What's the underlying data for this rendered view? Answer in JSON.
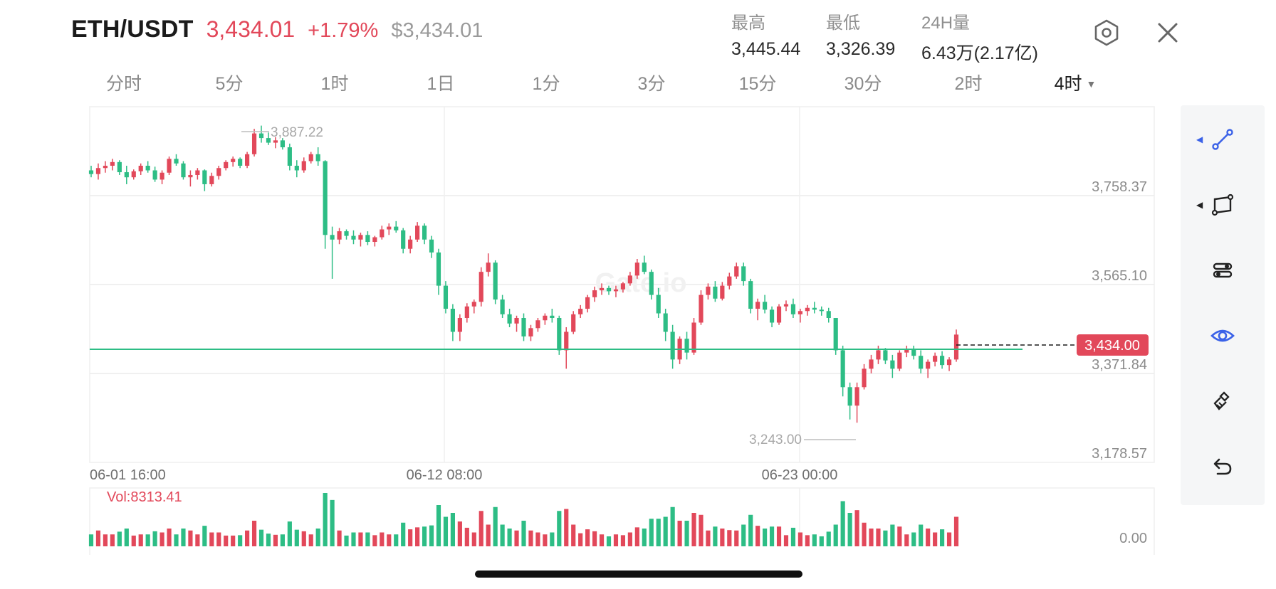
{
  "header": {
    "pair": "ETH/USDT",
    "price": "3,434.01",
    "change": "+1.79%",
    "usd_price": "$3,434.01",
    "colors": {
      "up": "#e2485a",
      "down": "#2dbd85",
      "muted": "#9a9a9a"
    }
  },
  "stats": {
    "high_label": "最高",
    "high_value": "3,445.44",
    "low_label": "最低",
    "low_value": "3,326.39",
    "volume_label": "24H量",
    "volume_value": "6.43万(2.17亿)"
  },
  "icons": {
    "settings": "hexagon-settings-icon",
    "close": "close-icon"
  },
  "tabs": [
    {
      "label": "分时",
      "active": false
    },
    {
      "label": "5分",
      "active": false
    },
    {
      "label": "1时",
      "active": false
    },
    {
      "label": "1日",
      "active": false
    },
    {
      "label": "1分",
      "active": false
    },
    {
      "label": "3分",
      "active": false
    },
    {
      "label": "15分",
      "active": false
    },
    {
      "label": "30分",
      "active": false
    },
    {
      "label": "2时",
      "active": false
    },
    {
      "label": "4时",
      "active": true
    }
  ],
  "chart": {
    "watermark": "Gate.io",
    "price_levels": [
      "3,758.37",
      "3,565.10",
      "3,371.84",
      "3,178.57"
    ],
    "date_labels": [
      "06-01 16:00",
      "06-12 08:00",
      "06-23 00:00"
    ],
    "high_marker": "3,887.22",
    "low_marker": "3,243.00",
    "current_price_tag": "3,434.00",
    "horizontal_line_color": "#2dbd85",
    "volume_label": "Vol:8313.41",
    "volume_axis_label": "0.00"
  },
  "chart_data": {
    "type": "candlestick",
    "timeframe": "4时",
    "y_ticks": [
      3758.37,
      3565.1,
      3371.84,
      3178.57
    ],
    "x_ticks": [
      "06-01 16:00",
      "06-12 08:00",
      "06-23 00:00"
    ],
    "max_marker": 3887.22,
    "min_marker": 3243.0,
    "last_price": 3434.0,
    "volume_last": 8313.41,
    "ohlc_approx": [
      [
        3790,
        3800,
        3775,
        3782
      ],
      [
        3782,
        3805,
        3770,
        3795
      ],
      [
        3795,
        3810,
        3785,
        3800
      ],
      [
        3800,
        3815,
        3790,
        3808
      ],
      [
        3808,
        3812,
        3780,
        3786
      ],
      [
        3786,
        3800,
        3760,
        3775
      ],
      [
        3775,
        3792,
        3770,
        3788
      ],
      [
        3788,
        3805,
        3780,
        3800
      ],
      [
        3800,
        3810,
        3785,
        3790
      ],
      [
        3790,
        3798,
        3765,
        3770
      ],
      [
        3770,
        3790,
        3760,
        3785
      ],
      [
        3785,
        3820,
        3780,
        3815
      ],
      [
        3815,
        3825,
        3800,
        3805
      ],
      [
        3805,
        3810,
        3770,
        3775
      ],
      [
        3775,
        3790,
        3755,
        3780
      ],
      [
        3780,
        3795,
        3770,
        3790
      ],
      [
        3790,
        3792,
        3745,
        3760
      ],
      [
        3760,
        3785,
        3755,
        3778
      ],
      [
        3778,
        3800,
        3770,
        3795
      ],
      [
        3795,
        3812,
        3790,
        3808
      ],
      [
        3808,
        3820,
        3798,
        3815
      ],
      [
        3815,
        3818,
        3795,
        3800
      ],
      [
        3800,
        3830,
        3795,
        3825
      ],
      [
        3825,
        3880,
        3820,
        3870
      ],
      [
        3870,
        3887,
        3850,
        3860
      ],
      [
        3860,
        3872,
        3845,
        3850
      ],
      [
        3850,
        3862,
        3838,
        3855
      ],
      [
        3855,
        3860,
        3835,
        3840
      ],
      [
        3840,
        3848,
        3790,
        3800
      ],
      [
        3800,
        3812,
        3775,
        3790
      ],
      [
        3790,
        3818,
        3785,
        3810
      ],
      [
        3810,
        3830,
        3805,
        3825
      ],
      [
        3825,
        3840,
        3800,
        3810
      ],
      [
        3810,
        3812,
        3620,
        3650
      ],
      [
        3650,
        3668,
        3555,
        3640
      ],
      [
        3640,
        3665,
        3630,
        3658
      ],
      [
        3658,
        3662,
        3640,
        3648
      ],
      [
        3648,
        3660,
        3630,
        3640
      ],
      [
        3640,
        3655,
        3625,
        3650
      ],
      [
        3650,
        3658,
        3628,
        3635
      ],
      [
        3635,
        3648,
        3625,
        3645
      ],
      [
        3645,
        3670,
        3640,
        3662
      ],
      [
        3662,
        3675,
        3650,
        3668
      ],
      [
        3668,
        3680,
        3655,
        3660
      ],
      [
        3660,
        3665,
        3610,
        3620
      ],
      [
        3620,
        3648,
        3610,
        3640
      ],
      [
        3640,
        3678,
        3635,
        3670
      ],
      [
        3670,
        3675,
        3630,
        3640
      ],
      [
        3640,
        3648,
        3600,
        3612
      ],
      [
        3612,
        3620,
        3520,
        3540
      ],
      [
        3540,
        3550,
        3480,
        3490
      ],
      [
        3490,
        3500,
        3420,
        3440
      ],
      [
        3440,
        3478,
        3420,
        3470
      ],
      [
        3470,
        3502,
        3460,
        3495
      ],
      [
        3495,
        3510,
        3480,
        3505
      ],
      [
        3505,
        3580,
        3495,
        3570
      ],
      [
        3570,
        3610,
        3560,
        3590
      ],
      [
        3590,
        3595,
        3500,
        3510
      ],
      [
        3510,
        3520,
        3470,
        3478
      ],
      [
        3478,
        3490,
        3450,
        3458
      ],
      [
        3458,
        3475,
        3440,
        3470
      ],
      [
        3470,
        3480,
        3420,
        3430
      ],
      [
        3430,
        3455,
        3420,
        3448
      ],
      [
        3448,
        3470,
        3440,
        3465
      ],
      [
        3465,
        3480,
        3455,
        3475
      ],
      [
        3475,
        3490,
        3460,
        3470
      ],
      [
        3470,
        3475,
        3390,
        3400
      ],
      [
        3400,
        3450,
        3360,
        3440
      ],
      [
        3440,
        3485,
        3435,
        3478
      ],
      [
        3478,
        3498,
        3470,
        3490
      ],
      [
        3490,
        3520,
        3482,
        3515
      ],
      [
        3515,
        3538,
        3505,
        3530
      ],
      [
        3530,
        3545,
        3520,
        3535
      ],
      [
        3535,
        3540,
        3520,
        3528
      ],
      [
        3528,
        3540,
        3515,
        3532
      ],
      [
        3532,
        3548,
        3525,
        3545
      ],
      [
        3545,
        3570,
        3540,
        3562
      ],
      [
        3562,
        3598,
        3555,
        3590
      ],
      [
        3590,
        3605,
        3565,
        3570
      ],
      [
        3570,
        3575,
        3510,
        3520
      ],
      [
        3520,
        3535,
        3470,
        3480
      ],
      [
        3480,
        3490,
        3420,
        3440
      ],
      [
        3440,
        3455,
        3360,
        3380
      ],
      [
        3380,
        3430,
        3370,
        3425
      ],
      [
        3425,
        3440,
        3380,
        3395
      ],
      [
        3395,
        3470,
        3390,
        3460
      ],
      [
        3460,
        3530,
        3455,
        3520
      ],
      [
        3520,
        3545,
        3510,
        3538
      ],
      [
        3538,
        3550,
        3505,
        3512
      ],
      [
        3512,
        3548,
        3508,
        3540
      ],
      [
        3540,
        3568,
        3532,
        3560
      ],
      [
        3560,
        3590,
        3555,
        3582
      ],
      [
        3582,
        3590,
        3540,
        3550
      ],
      [
        3550,
        3555,
        3480,
        3490
      ],
      [
        3490,
        3512,
        3465,
        3505
      ],
      [
        3505,
        3520,
        3480,
        3488
      ],
      [
        3488,
        3495,
        3450,
        3460
      ],
      [
        3460,
        3500,
        3455,
        3495
      ],
      [
        3495,
        3508,
        3485,
        3500
      ],
      [
        3500,
        3512,
        3470,
        3478
      ],
      [
        3478,
        3490,
        3460,
        3485
      ],
      [
        3485,
        3498,
        3475,
        3492
      ],
      [
        3492,
        3505,
        3480,
        3488
      ],
      [
        3488,
        3495,
        3475,
        3485
      ],
      [
        3485,
        3492,
        3460,
        3470
      ],
      [
        3470,
        3440,
        3390,
        3400
      ],
      [
        3400,
        3410,
        3300,
        3320
      ],
      [
        3320,
        3330,
        3250,
        3280
      ],
      [
        3280,
        3330,
        3243,
        3320
      ],
      [
        3320,
        3370,
        3315,
        3360
      ],
      [
        3360,
        3390,
        3350,
        3380
      ],
      [
        3380,
        3410,
        3370,
        3400
      ],
      [
        3400,
        3405,
        3370,
        3378
      ],
      [
        3378,
        3390,
        3340,
        3360
      ],
      [
        3360,
        3400,
        3355,
        3395
      ],
      [
        3395,
        3410,
        3385,
        3402
      ],
      [
        3402,
        3410,
        3380,
        3388
      ],
      [
        3388,
        3400,
        3350,
        3360
      ],
      [
        3360,
        3380,
        3340,
        3375
      ],
      [
        3375,
        3395,
        3365,
        3388
      ],
      [
        3388,
        3398,
        3360,
        3368
      ],
      [
        3368,
        3385,
        3355,
        3380
      ],
      [
        3380,
        3445,
        3375,
        3434
      ]
    ]
  },
  "toolbar": [
    {
      "icon": "trend-line-icon",
      "active": true,
      "has_flyout": true
    },
    {
      "icon": "parallelogram-draw-icon",
      "active": false,
      "has_flyout": true
    },
    {
      "icon": "indicator-settings-icon",
      "active": false,
      "has_flyout": false
    },
    {
      "icon": "eye-visibility-icon",
      "active": true,
      "has_flyout": false
    },
    {
      "icon": "eraser-brush-icon",
      "active": false,
      "has_flyout": false
    },
    {
      "icon": "undo-icon",
      "active": false,
      "has_flyout": false
    }
  ]
}
